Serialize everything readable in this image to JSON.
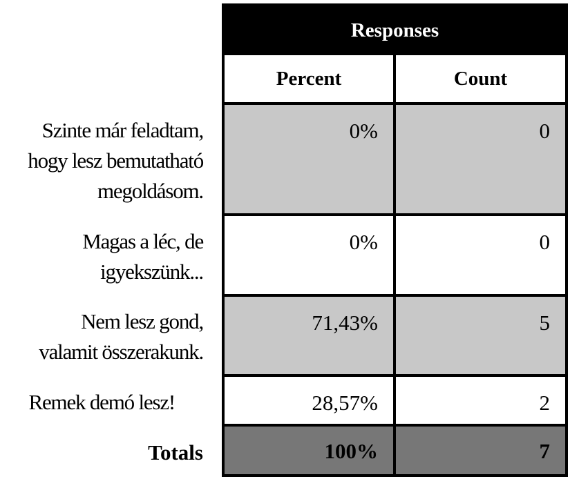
{
  "chart_data": {
    "type": "table",
    "header": "Responses",
    "columns": [
      "Percent",
      "Count"
    ],
    "rows": [
      {
        "label": [
          "Szinte már feladtam,",
          "hogy lesz bemutatható",
          "megoldásom."
        ],
        "percent": "0%",
        "count": "0"
      },
      {
        "label": [
          "Magas a léc, de",
          "igyekszünk..."
        ],
        "percent": "0%",
        "count": "0"
      },
      {
        "label": [
          "Nem lesz gond,",
          "valamit összerakunk."
        ],
        "percent": "71,43%",
        "count": "5"
      },
      {
        "label": [
          "Remek demó lesz!"
        ],
        "percent": "28,57%",
        "count": "2"
      }
    ],
    "totals": {
      "label": "Totals",
      "percent": "100%",
      "count": "7"
    }
  },
  "colors": {
    "header_bg": "#000000",
    "row_shaded": "#c8c8c8",
    "totals_bg": "#777777"
  }
}
